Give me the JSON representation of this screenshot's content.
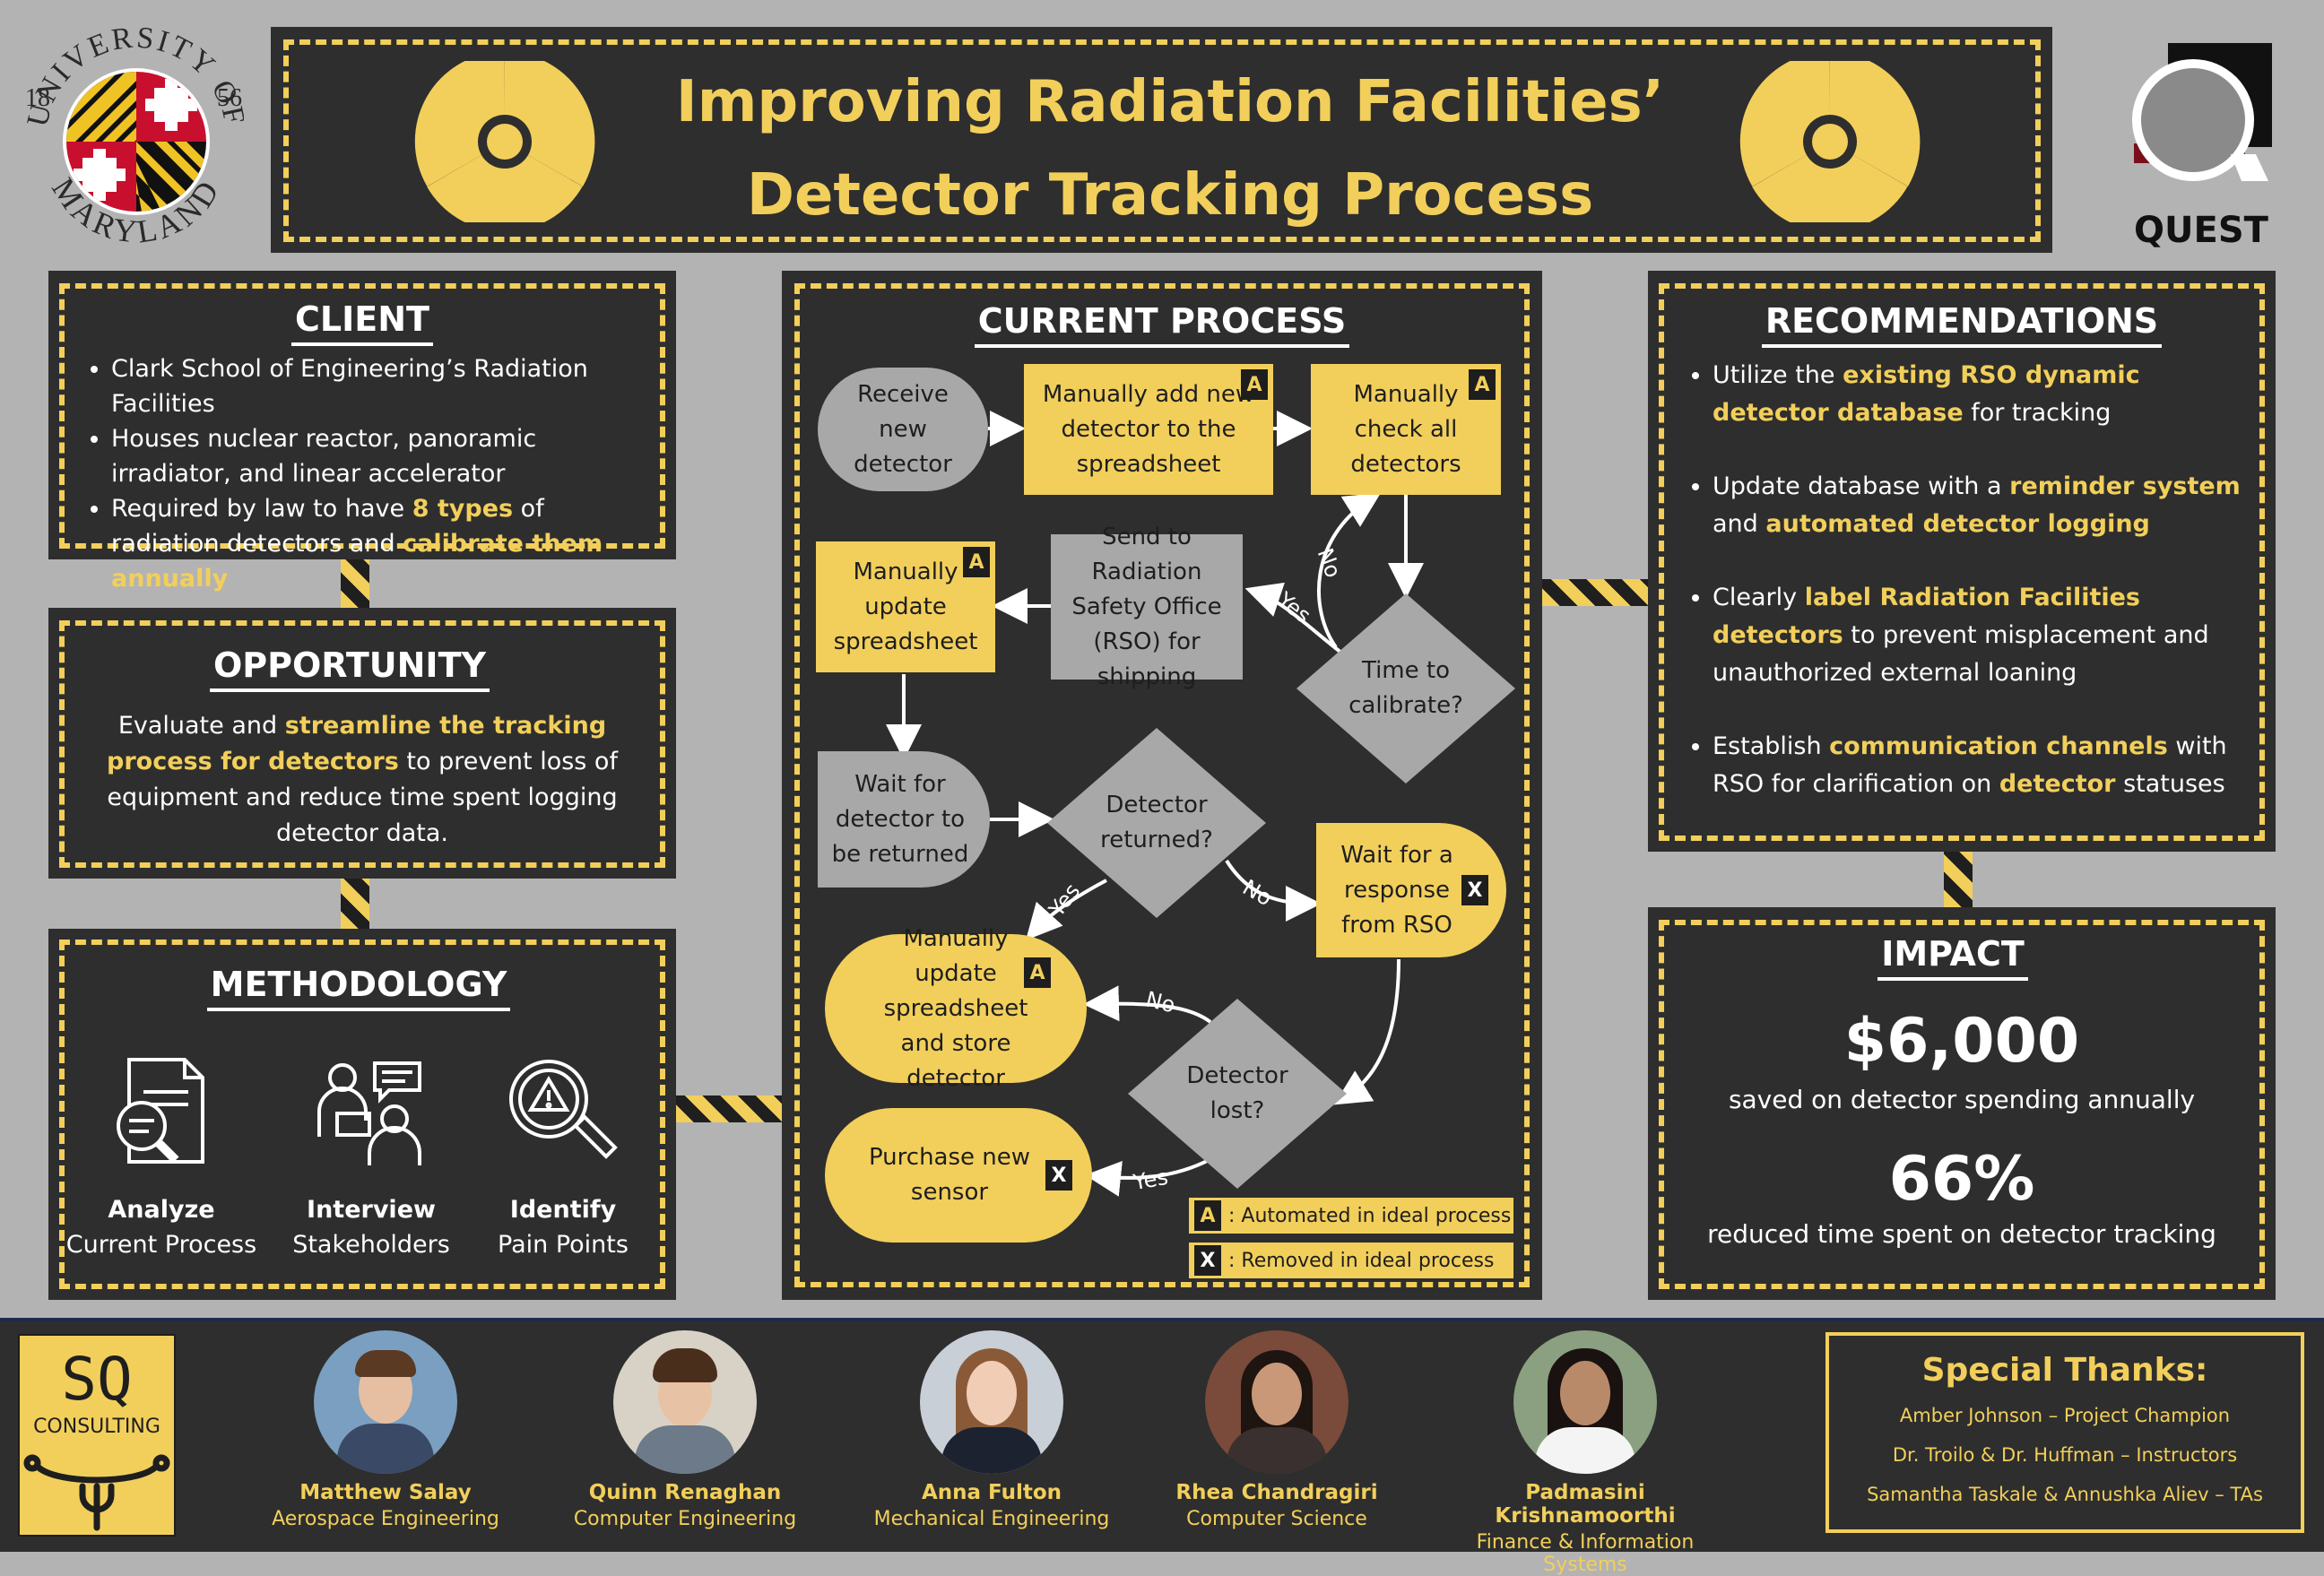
{
  "header": {
    "title_line1": "Improving Radiation Facilities’",
    "title_line2": "Detector Tracking Process",
    "umd_seal": {
      "top": "UNIVERSITY OF",
      "bottom": "MARYLAND",
      "year_left": "18",
      "year_right": "56"
    },
    "quest_label": "QUEST",
    "colors": {
      "accent": "#f2cf5b",
      "panel": "#2e2e2e",
      "background": "#b3b3b3"
    }
  },
  "client": {
    "title": "CLIENT",
    "b1": "Clark School of Engineering’s Radiation Facilities",
    "b2": "Houses nuclear reactor, panoramic irradiator, and linear accelerator",
    "b3_pre": "Required by law to have ",
    "b3_hl1": "8 types",
    "b3_mid": " of radiation detectors and ",
    "b3_hl2": "calibrate them annually"
  },
  "opportunity": {
    "title": "OPPORTUNITY",
    "pre": "Evaluate and ",
    "hl": "streamline the tracking process for detectors",
    "post": " to prevent loss of equipment and reduce time spent logging detector data."
  },
  "methodology": {
    "title": "METHODOLOGY",
    "items": [
      {
        "icon": "document-search-icon",
        "bold": "Analyze",
        "sub": "Current Process"
      },
      {
        "icon": "interview-people-icon",
        "bold": "Interview",
        "sub": "Stakeholders"
      },
      {
        "icon": "warning-magnifier-icon",
        "bold": "Identify",
        "sub": "Pain Points"
      }
    ]
  },
  "process": {
    "title": "CURRENT PROCESS",
    "receive": "Receive new detector",
    "add": "Manually add new detector to the spreadsheet",
    "check": "Manually check all detectors",
    "update1": "Manually update spreadsheet",
    "send": "Send to Radiation Safety Office (RSO) for shipping",
    "calibrate": "Time to calibrate?",
    "wait_return": "Wait for detector to be returned",
    "returned": "Detector returned?",
    "wait_rso": "Wait for a response from RSO",
    "update_store": "Manually update spreadsheet and store detector",
    "lost": "Detector lost?",
    "purchase": "Purchase new sensor",
    "yes": "Yes",
    "no": "No",
    "tag_a": "A",
    "tag_x": "X",
    "legend_a": ": Automated in ideal process",
    "legend_x": ": Removed in ideal process"
  },
  "recommendations": {
    "title": "RECOMMENDATIONS",
    "r1_pre": "Utilize the ",
    "r1_hl": "existing RSO dynamic detector database",
    "r1_post": " for tracking",
    "r2_pre": "Update database with a ",
    "r2_hl1": "reminder system",
    "r2_mid": " and ",
    "r2_hl2": "automated detector logging",
    "r3_pre": "Clearly ",
    "r3_hl": "label Radiation Facilities detectors",
    "r3_post": " to prevent misplacement and unauthorized external loaning",
    "r4_pre": "Establish ",
    "r4_hl1": "communication channels",
    "r4_mid": " with RSO for clarification on ",
    "r4_hl2": "detector",
    "r4_post": " statuses"
  },
  "impact": {
    "title": "IMPACT",
    "v1": "$6,000",
    "d1": "saved on detector spending annually",
    "v2": "66%",
    "d2": "reduced time spent on detector tracking"
  },
  "footer": {
    "logo_top": "SQ",
    "logo_bottom": "CONSULTING",
    "team": [
      {
        "name": "Matthew Salay",
        "major": "Aerospace Engineering"
      },
      {
        "name": "Quinn Renaghan",
        "major": "Computer  Engineering"
      },
      {
        "name": "Anna Fulton",
        "major": "Mechanical Engineering"
      },
      {
        "name": "Rhea Chandragiri",
        "major": "Computer Science"
      },
      {
        "name": "Padmasini Krishnamoorthi",
        "major": "Finance & Information Systems"
      }
    ],
    "thanks_title": "Special Thanks:",
    "thanks": [
      "Amber Johnson – Project Champion",
      "Dr. Troilo & Dr. Huffman – Instructors",
      "Samantha Taskale & Annushka Aliev – TAs"
    ]
  }
}
